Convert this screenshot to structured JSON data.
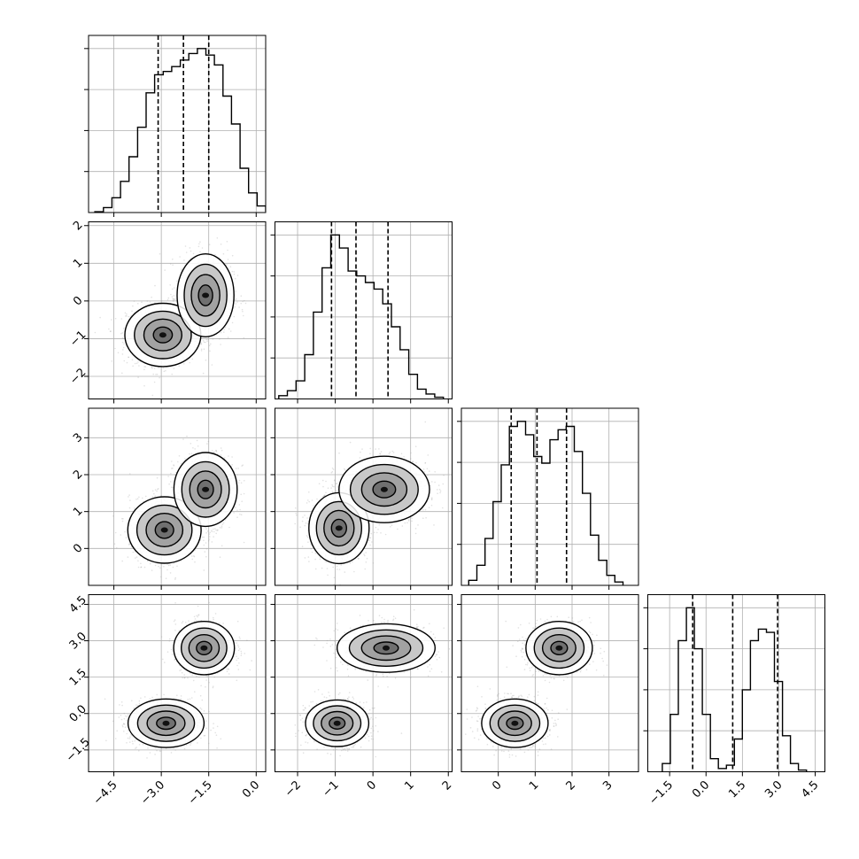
{
  "chart_data": {
    "type": "corner",
    "parameters": [
      {
        "id": "p0",
        "range": [
          -5.3,
          0.3
        ],
        "ticks": [
          -4.5,
          -3.0,
          -1.5,
          0.0
        ],
        "tick_labels": [
          "−4.5",
          "−3.0",
          "−1.5",
          "0.0"
        ],
        "quantiles": [
          -3.1,
          -2.3,
          -1.5
        ],
        "hist": {
          "start": -5.1,
          "width": 0.27,
          "counts": [
            0.005,
            0.03,
            0.09,
            0.19,
            0.34,
            0.52,
            0.73,
            0.84,
            0.86,
            0.89,
            0.93,
            0.97,
            1.0,
            0.96,
            0.9,
            0.71,
            0.54,
            0.27,
            0.12,
            0.04,
            0.01
          ]
        }
      },
      {
        "id": "p1",
        "range": [
          -2.6,
          2.1
        ],
        "ticks": [
          -2,
          -1,
          0,
          1,
          2
        ],
        "tick_labels": [
          "−2",
          "−1",
          "0",
          "1",
          "2"
        ],
        "quantiles": [
          -1.1,
          -0.45,
          0.4
        ],
        "hist": {
          "start": -2.5,
          "width": 0.23,
          "counts": [
            0.02,
            0.05,
            0.11,
            0.27,
            0.53,
            0.8,
            1.0,
            0.92,
            0.78,
            0.75,
            0.71,
            0.67,
            0.58,
            0.44,
            0.3,
            0.15,
            0.06,
            0.03,
            0.01
          ]
        }
      },
      {
        "id": "p2",
        "range": [
          -1.0,
          3.8
        ],
        "ticks": [
          0,
          1,
          2,
          3
        ],
        "tick_labels": [
          "0",
          "1",
          "2",
          "3"
        ],
        "quantiles": [
          0.35,
          1.05,
          1.85
        ],
        "hist": {
          "start": -0.8,
          "width": 0.22,
          "counts": [
            0.03,
            0.12,
            0.28,
            0.5,
            0.72,
            0.95,
            0.98,
            0.9,
            0.77,
            0.73,
            0.87,
            0.93,
            0.95,
            0.8,
            0.55,
            0.3,
            0.15,
            0.06,
            0.02
          ]
        }
      },
      {
        "id": "p3",
        "range": [
          -2.4,
          4.9
        ],
        "ticks": [
          -1.5,
          0.0,
          1.5,
          3.0,
          4.5
        ],
        "tick_labels": [
          "−1.5",
          "0.0",
          "1.5",
          "3.0",
          "4.5"
        ],
        "quantiles": [
          -0.55,
          1.1,
          2.95
        ],
        "hist": {
          "start": -1.8,
          "width": 0.33,
          "counts": [
            0.05,
            0.35,
            0.8,
            1.0,
            0.75,
            0.35,
            0.08,
            0.02,
            0.04,
            0.2,
            0.5,
            0.8,
            0.87,
            0.85,
            0.55,
            0.22,
            0.05,
            0.01
          ]
        }
      }
    ],
    "pairs": [
      {
        "x": 0,
        "y": 1,
        "modes": [
          {
            "cx": -2.95,
            "cy": -0.9,
            "sx": 0.6,
            "sy": 0.42,
            "w": 1.0
          },
          {
            "cx": -1.6,
            "cy": 0.15,
            "sx": 0.45,
            "sy": 0.55,
            "w": 0.9
          }
        ]
      },
      {
        "x": 0,
        "y": 2,
        "modes": [
          {
            "cx": -2.9,
            "cy": 0.5,
            "sx": 0.58,
            "sy": 0.45,
            "w": 1.0
          },
          {
            "cx": -1.6,
            "cy": 1.6,
            "sx": 0.5,
            "sy": 0.5,
            "w": 0.9
          }
        ]
      },
      {
        "x": 1,
        "y": 2,
        "modes": [
          {
            "cx": -0.9,
            "cy": 0.55,
            "sx": 0.4,
            "sy": 0.48,
            "w": 1.0
          },
          {
            "cx": 0.3,
            "cy": 1.6,
            "sx": 0.6,
            "sy": 0.45,
            "w": 0.85
          }
        ]
      },
      {
        "x": 0,
        "y": 3,
        "modes": [
          {
            "cx": -2.85,
            "cy": -0.4,
            "sx": 0.6,
            "sy": 0.5,
            "w": 1.0
          },
          {
            "cx": -1.65,
            "cy": 2.7,
            "sx": 0.48,
            "sy": 0.55,
            "w": 0.9
          }
        ]
      },
      {
        "x": 1,
        "y": 3,
        "modes": [
          {
            "cx": -0.95,
            "cy": -0.4,
            "sx": 0.42,
            "sy": 0.48,
            "w": 1.0
          },
          {
            "cx": 0.35,
            "cy": 2.7,
            "sx": 0.65,
            "sy": 0.5,
            "w": 0.85
          }
        ]
      },
      {
        "x": 2,
        "y": 3,
        "modes": [
          {
            "cx": 0.45,
            "cy": -0.4,
            "sx": 0.45,
            "sy": 0.5,
            "w": 1.0
          },
          {
            "cx": 1.65,
            "cy": 2.7,
            "sx": 0.45,
            "sy": 0.55,
            "w": 0.9
          }
        ]
      }
    ],
    "grid": true,
    "legend": "none"
  }
}
